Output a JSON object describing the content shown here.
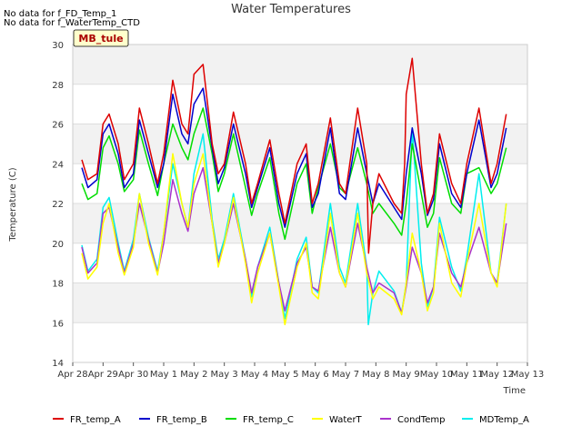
{
  "chart_data": {
    "type": "line",
    "title": "Water Temperatures",
    "xlabel": "Time",
    "ylabel": "Temperature (C)",
    "no_data_notes": [
      "No data for f_FD_Temp_1",
      "No data for f_WaterTemp_CTD"
    ],
    "site_badge": "MB_tule",
    "ylim": [
      14,
      30
    ],
    "xlim": [
      0,
      15
    ],
    "y_ticks": [
      14,
      16,
      18,
      20,
      22,
      24,
      26,
      28,
      30
    ],
    "x_ticks": [
      {
        "pos": 0,
        "label": "Apr 28"
      },
      {
        "pos": 1,
        "label": "Apr 29"
      },
      {
        "pos": 2,
        "label": "Apr 30"
      },
      {
        "pos": 3,
        "label": "May 1"
      },
      {
        "pos": 4,
        "label": "May 2"
      },
      {
        "pos": 5,
        "label": "May 3"
      },
      {
        "pos": 6,
        "label": "May 4"
      },
      {
        "pos": 7,
        "label": "May 5"
      },
      {
        "pos": 8,
        "label": "May 6"
      },
      {
        "pos": 9,
        "label": "May 7"
      },
      {
        "pos": 10,
        "label": "May 8"
      },
      {
        "pos": 11,
        "label": "May 9"
      },
      {
        "pos": 12,
        "label": "May 10"
      },
      {
        "pos": 13,
        "label": "May 11"
      },
      {
        "pos": 14,
        "label": "May 12"
      },
      {
        "pos": 15,
        "label": "May 13"
      }
    ],
    "grid": true,
    "legend_position": "bottom",
    "series": [
      {
        "name": "FR_temp_A",
        "color": "#dd0000",
        "x": [
          0.3,
          0.5,
          0.8,
          1.0,
          1.2,
          1.5,
          1.7,
          2.0,
          2.2,
          2.5,
          2.8,
          3.0,
          3.3,
          3.6,
          3.8,
          4.0,
          4.3,
          4.6,
          4.8,
          5.0,
          5.3,
          5.7,
          5.9,
          6.1,
          6.5,
          6.8,
          7.0,
          7.4,
          7.7,
          7.9,
          8.1,
          8.5,
          8.8,
          9.0,
          9.4,
          9.7,
          9.76,
          9.9,
          10.1,
          10.6,
          10.85,
          10.95,
          11.0,
          11.2,
          11.5,
          11.7,
          11.9,
          12.1,
          12.5,
          12.8,
          13.0,
          13.4,
          13.8,
          14.0,
          14.3
        ],
        "y": [
          24.2,
          23.2,
          23.5,
          26.0,
          26.5,
          25.0,
          23.2,
          24.0,
          26.8,
          25.0,
          23.0,
          24.5,
          28.2,
          26.0,
          25.5,
          28.5,
          29.0,
          25.0,
          23.5,
          24.0,
          26.6,
          24.0,
          22.0,
          23.0,
          25.2,
          22.5,
          21.0,
          24.0,
          25.0,
          22.0,
          23.0,
          26.3,
          23.0,
          22.5,
          26.8,
          24.0,
          19.5,
          22.0,
          23.5,
          22.0,
          21.5,
          24.0,
          27.5,
          29.3,
          24.0,
          21.5,
          22.5,
          25.5,
          23.0,
          22.0,
          24.0,
          26.8,
          23.0,
          24.0,
          26.5
        ]
      },
      {
        "name": "FR_temp_B",
        "color": "#0000cc",
        "x": [
          0.3,
          0.5,
          0.8,
          1.0,
          1.2,
          1.5,
          1.7,
          2.0,
          2.2,
          2.5,
          2.8,
          3.0,
          3.3,
          3.6,
          3.8,
          4.0,
          4.3,
          4.6,
          4.8,
          5.0,
          5.3,
          5.7,
          5.9,
          6.1,
          6.5,
          6.8,
          7.0,
          7.4,
          7.7,
          7.9,
          8.1,
          8.5,
          8.8,
          9.0,
          9.4,
          9.7,
          9.9,
          10.1,
          10.6,
          10.85,
          11.0,
          11.2,
          11.5,
          11.7,
          11.9,
          12.1,
          12.5,
          12.8,
          13.0,
          13.4,
          13.8,
          14.0,
          14.3
        ],
        "y": [
          23.8,
          22.8,
          23.2,
          25.5,
          26.0,
          24.5,
          22.8,
          23.5,
          26.2,
          24.5,
          22.8,
          24.0,
          27.5,
          25.5,
          25.0,
          27.0,
          27.8,
          24.8,
          23.0,
          23.8,
          26.0,
          23.5,
          21.8,
          22.8,
          24.8,
          22.0,
          20.8,
          23.5,
          24.5,
          21.8,
          22.5,
          25.8,
          22.5,
          22.2,
          25.8,
          23.5,
          22.0,
          23.0,
          21.8,
          21.2,
          23.5,
          25.8,
          23.5,
          21.4,
          22.2,
          25.0,
          22.5,
          21.8,
          23.5,
          26.2,
          22.8,
          23.5,
          25.8
        ]
      },
      {
        "name": "FR_temp_C",
        "color": "#00dd00",
        "x": [
          0.3,
          0.5,
          0.8,
          1.0,
          1.2,
          1.5,
          1.7,
          2.0,
          2.2,
          2.5,
          2.8,
          3.0,
          3.3,
          3.6,
          3.8,
          4.0,
          4.3,
          4.6,
          4.8,
          5.0,
          5.3,
          5.7,
          5.9,
          6.1,
          6.5,
          6.8,
          7.0,
          7.4,
          7.7,
          7.9,
          8.1,
          8.5,
          8.8,
          9.0,
          9.4,
          9.7,
          9.9,
          10.1,
          10.6,
          10.85,
          11.0,
          11.2,
          11.5,
          11.7,
          11.9,
          12.1,
          12.5,
          12.8,
          13.0,
          13.4,
          13.8,
          14.0,
          14.3
        ],
        "y": [
          23.0,
          22.2,
          22.5,
          24.8,
          25.4,
          24.0,
          22.6,
          23.2,
          25.7,
          24.0,
          22.4,
          24.0,
          26.0,
          24.8,
          24.2,
          25.5,
          26.8,
          24.5,
          22.6,
          23.5,
          25.5,
          22.8,
          21.4,
          22.5,
          24.3,
          21.5,
          20.2,
          23.0,
          24.0,
          21.5,
          22.8,
          25.0,
          22.8,
          22.5,
          24.8,
          23.0,
          21.5,
          22.0,
          21.0,
          20.4,
          22.0,
          25.0,
          22.5,
          20.8,
          21.5,
          24.3,
          22.0,
          21.5,
          23.5,
          23.8,
          22.5,
          23.0,
          24.8
        ]
      },
      {
        "name": "WaterT",
        "color": "#ffff00",
        "x": [
          0.3,
          0.5,
          0.8,
          1.0,
          1.2,
          1.5,
          1.7,
          2.0,
          2.2,
          2.5,
          2.8,
          3.0,
          3.3,
          3.6,
          3.8,
          4.0,
          4.3,
          4.6,
          4.8,
          5.0,
          5.3,
          5.7,
          5.9,
          6.1,
          6.5,
          6.8,
          7.0,
          7.4,
          7.7,
          7.9,
          8.1,
          8.5,
          8.8,
          9.0,
          9.4,
          9.7,
          9.9,
          10.1,
          10.6,
          10.85,
          11.0,
          11.2,
          11.5,
          11.7,
          11.9,
          12.1,
          12.5,
          12.8,
          13.0,
          13.4,
          13.8,
          14.0,
          14.3
        ],
        "y": [
          19.5,
          18.2,
          18.8,
          21.0,
          22.0,
          19.5,
          18.4,
          19.8,
          22.5,
          20.0,
          18.4,
          20.5,
          24.5,
          22.0,
          20.8,
          23.0,
          24.5,
          21.0,
          18.8,
          20.0,
          22.3,
          19.0,
          17.0,
          18.5,
          20.5,
          17.8,
          15.9,
          18.8,
          20.0,
          17.5,
          17.2,
          21.5,
          18.5,
          17.8,
          21.5,
          18.5,
          17.2,
          17.8,
          17.2,
          16.4,
          18.0,
          20.5,
          18.5,
          16.6,
          17.5,
          21.0,
          18.0,
          17.3,
          19.0,
          22.0,
          18.5,
          17.8,
          22.0
        ]
      },
      {
        "name": "CondTemp",
        "color": "#aa33cc",
        "x": [
          0.3,
          0.5,
          0.8,
          1.0,
          1.2,
          1.5,
          1.7,
          2.0,
          2.2,
          2.5,
          2.8,
          3.0,
          3.3,
          3.6,
          3.8,
          4.0,
          4.3,
          4.6,
          4.8,
          5.0,
          5.3,
          5.7,
          5.9,
          6.1,
          6.5,
          6.8,
          7.0,
          7.4,
          7.7,
          7.9,
          8.1,
          8.5,
          8.8,
          9.0,
          9.4,
          9.7,
          9.9,
          10.1,
          10.6,
          10.85,
          11.0,
          11.2,
          11.5,
          11.7,
          11.9,
          12.1,
          12.5,
          12.8,
          13.0,
          13.4,
          13.8,
          14.0,
          14.3
        ],
        "y": [
          19.8,
          18.5,
          19.0,
          21.5,
          21.8,
          19.8,
          18.5,
          20.0,
          22.0,
          20.2,
          18.5,
          20.0,
          23.2,
          21.5,
          20.6,
          22.5,
          23.8,
          21.0,
          19.0,
          20.0,
          22.0,
          19.2,
          17.5,
          18.8,
          20.5,
          18.0,
          16.6,
          19.0,
          19.8,
          17.8,
          17.6,
          20.8,
          18.5,
          17.8,
          21.0,
          18.8,
          17.5,
          18.0,
          17.5,
          16.5,
          17.8,
          19.8,
          18.5,
          17.0,
          17.8,
          20.5,
          18.5,
          17.8,
          19.0,
          20.8,
          18.5,
          18.0,
          21.0
        ]
      },
      {
        "name": "MDTemp_A",
        "color": "#00eeee",
        "x": [
          0.3,
          0.5,
          0.8,
          1.0,
          1.2,
          1.5,
          1.7,
          2.0,
          2.2,
          2.5,
          2.8,
          3.0,
          3.3,
          3.6,
          3.8,
          4.0,
          4.3,
          4.6,
          4.8,
          5.0,
          5.3,
          5.7,
          5.9,
          6.1,
          6.5,
          6.8,
          7.0,
          7.4,
          7.7,
          7.9,
          8.1,
          8.5,
          8.8,
          9.0,
          9.4,
          9.7,
          9.75,
          9.9,
          10.1,
          10.6,
          10.85,
          11.0,
          11.2,
          11.5,
          11.7,
          11.9,
          12.1,
          12.5,
          12.8,
          13.0,
          13.4,
          13.8,
          14.0,
          14.3
        ],
        "y": [
          19.9,
          18.6,
          19.2,
          21.8,
          22.3,
          20.0,
          18.6,
          20.2,
          22.5,
          20.3,
          18.6,
          20.5,
          24.0,
          22.0,
          20.8,
          23.5,
          25.5,
          21.2,
          19.2,
          20.2,
          22.5,
          19.2,
          17.3,
          18.8,
          20.8,
          18.0,
          16.2,
          19.2,
          20.3,
          17.8,
          17.5,
          22.0,
          18.8,
          18.0,
          22.0,
          18.8,
          15.9,
          17.5,
          18.6,
          17.6,
          16.5,
          18.0,
          25.8,
          19.0,
          16.8,
          17.8,
          21.3,
          18.8,
          17.6,
          19.3,
          23.5,
          18.5,
          18.0,
          22.0
        ]
      }
    ]
  }
}
